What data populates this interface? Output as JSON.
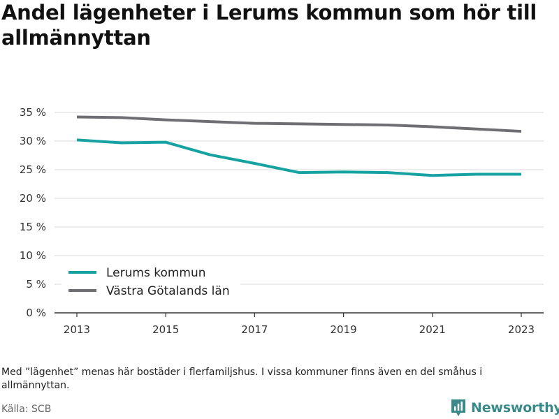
{
  "title": "Andel lägenheter i Lerums kommun som hör till allmännyttan",
  "footnote": "Med ”lägenhet” menas här bostäder i flerfamiljshus. I vissa kommuner finns även en del småhus i allmännyttan.",
  "source": "Källa: SCB",
  "brand": {
    "name": "Newsworthy",
    "icon": "newsworthy-logo-icon",
    "color": "#3a8a8a"
  },
  "chart_data": {
    "type": "line",
    "x": [
      2013,
      2014,
      2015,
      2016,
      2017,
      2018,
      2019,
      2020,
      2021,
      2022,
      2023
    ],
    "xticks": [
      2013,
      2015,
      2017,
      2019,
      2021,
      2023
    ],
    "xtick_labels": [
      "2013",
      "2015",
      "2017",
      "2019",
      "2021",
      "2023"
    ],
    "xlim": [
      2013,
      2023
    ],
    "ylim": [
      0,
      35
    ],
    "yticks": [
      0,
      5,
      10,
      15,
      20,
      25,
      30,
      35
    ],
    "ytick_labels": [
      "0 %",
      "5 %",
      "10 %",
      "15 %",
      "20 %",
      "25 %",
      "30 %",
      "35 %"
    ],
    "grid": true,
    "legend_position": "bottom-left",
    "series": [
      {
        "name": "Lerums kommun",
        "color": "#17a2a2",
        "values": [
          30.2,
          29.7,
          29.8,
          27.6,
          26.1,
          24.5,
          24.6,
          24.5,
          24.0,
          24.2,
          24.2
        ]
      },
      {
        "name": "Västra Götalands län",
        "color": "#6f6e73",
        "values": [
          34.2,
          34.1,
          33.7,
          33.4,
          33.1,
          33.0,
          32.9,
          32.8,
          32.5,
          32.1,
          31.7
        ]
      }
    ]
  }
}
